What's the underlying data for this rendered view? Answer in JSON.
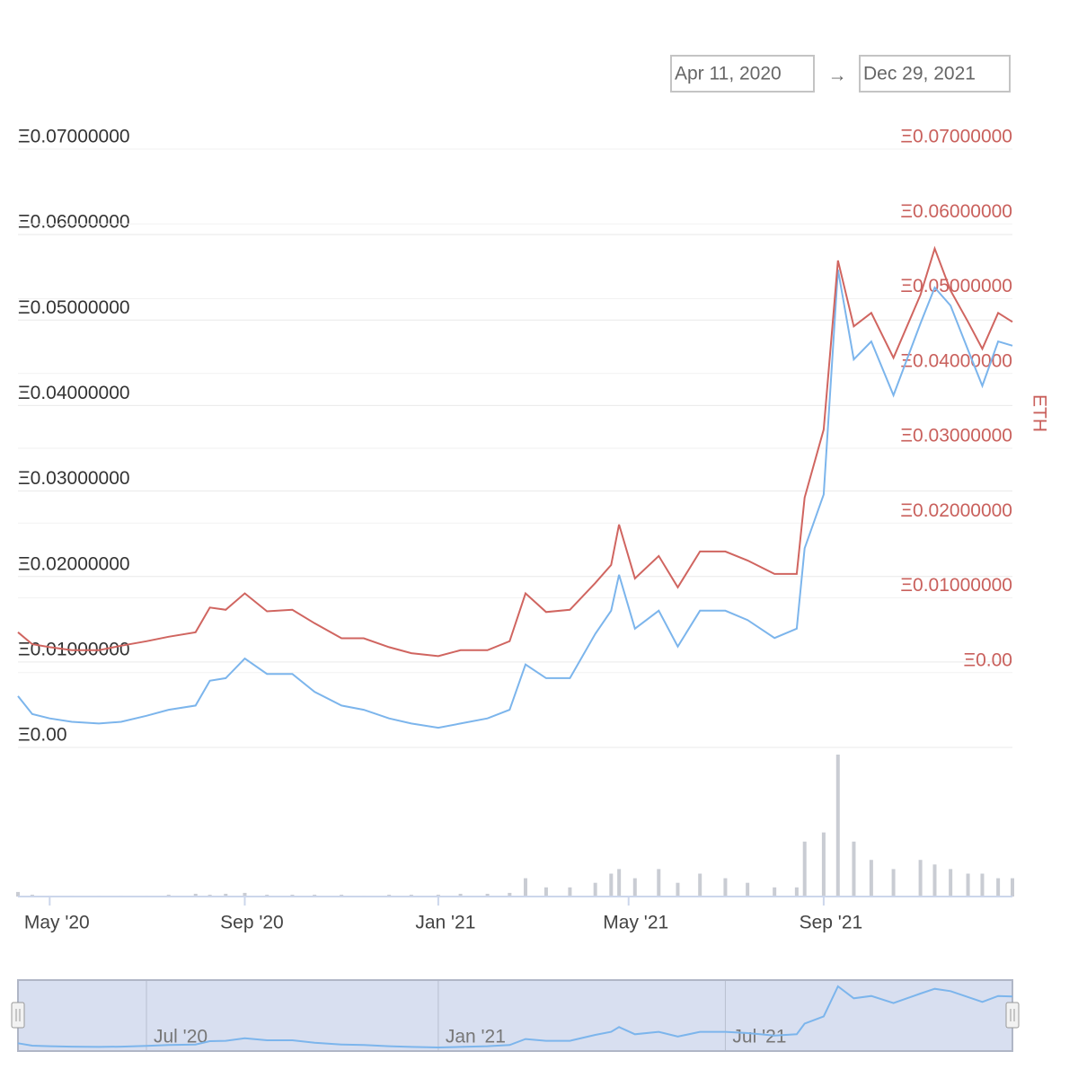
{
  "chart_data": {
    "type": "line",
    "range": {
      "from": "Apr 11, 2020",
      "separator": "→",
      "to": "Dec 29, 2021"
    },
    "x": [
      "2020-04-11",
      "2020-04-20",
      "2020-05-01",
      "2020-05-15",
      "2020-06-01",
      "2020-06-15",
      "2020-07-01",
      "2020-07-15",
      "2020-08-01",
      "2020-08-10",
      "2020-08-20",
      "2020-09-01",
      "2020-09-15",
      "2020-10-01",
      "2020-10-15",
      "2020-11-01",
      "2020-11-15",
      "2020-12-01",
      "2020-12-15",
      "2021-01-01",
      "2021-01-15",
      "2021-02-01",
      "2021-02-15",
      "2021-02-25",
      "2021-03-10",
      "2021-03-25",
      "2021-04-10",
      "2021-04-20",
      "2021-04-25",
      "2021-05-05",
      "2021-05-20",
      "2021-06-01",
      "2021-06-15",
      "2021-07-01",
      "2021-07-15",
      "2021-08-01",
      "2021-08-15",
      "2021-08-20",
      "2021-09-01",
      "2021-09-10",
      "2021-09-20",
      "2021-10-01",
      "2021-10-15",
      "2021-11-01",
      "2021-11-10",
      "2021-11-20",
      "2021-12-01",
      "2021-12-10",
      "2021-12-20",
      "2021-12-29"
    ],
    "xlim": [
      "2020-04-11",
      "2021-12-29"
    ],
    "xticks": [
      {
        "value": "2020-05-01",
        "label": "May '20"
      },
      {
        "value": "2020-09-01",
        "label": "Sep '20"
      },
      {
        "value": "2021-01-01",
        "label": "Jan '21"
      },
      {
        "value": "2021-05-01",
        "label": "May '21"
      },
      {
        "value": "2021-09-01",
        "label": "Sep '21"
      }
    ],
    "ylim": [
      0,
      0.07
    ],
    "yticks": [
      {
        "value": 0,
        "label": "Ξ0.00"
      },
      {
        "value": 0.01,
        "label": "Ξ0.01000000"
      },
      {
        "value": 0.02,
        "label": "Ξ0.02000000"
      },
      {
        "value": 0.03,
        "label": "Ξ0.03000000"
      },
      {
        "value": 0.04,
        "label": "Ξ0.04000000"
      },
      {
        "value": 0.05,
        "label": "Ξ0.05000000"
      },
      {
        "value": 0.06,
        "label": "Ξ0.06000000"
      },
      {
        "value": 0.07,
        "label": "Ξ0.07000000"
      }
    ],
    "y2lim": [
      -0.01,
      0.07
    ],
    "y2ticks": [
      {
        "value": 0,
        "label": "Ξ0.00"
      },
      {
        "value": 0.01,
        "label": "Ξ0.01000000"
      },
      {
        "value": 0.02,
        "label": "Ξ0.02000000"
      },
      {
        "value": 0.03,
        "label": "Ξ0.03000000"
      },
      {
        "value": 0.04,
        "label": "Ξ0.04000000"
      },
      {
        "value": 0.05,
        "label": "Ξ0.05000000"
      },
      {
        "value": 0.06,
        "label": "Ξ0.06000000"
      },
      {
        "value": 0.07,
        "label": "Ξ0.07000000"
      }
    ],
    "y2label": "ETH",
    "grid": true,
    "series": [
      {
        "color": "#7cb5ec",
        "values": [
          0.006,
          0.0039,
          0.0034,
          0.003,
          0.0028,
          0.003,
          0.0037,
          0.0044,
          0.0049,
          0.0078,
          0.0081,
          0.0104,
          0.0086,
          0.0086,
          0.0065,
          0.0049,
          0.0044,
          0.0034,
          0.0028,
          0.0023,
          0.0028,
          0.0034,
          0.0044,
          0.0097,
          0.0081,
          0.0081,
          0.0133,
          0.016,
          0.0202,
          0.0139,
          0.016,
          0.0118,
          0.016,
          0.016,
          0.0149,
          0.0128,
          0.0139,
          0.0233,
          0.0296,
          0.0559,
          0.0454,
          0.0475,
          0.0412,
          0.0496,
          0.0538,
          0.0517,
          0.0465,
          0.0423,
          0.0475,
          0.047
        ]
      },
      {
        "color": "#d06560",
        "axis": "y2",
        "values": [
          0.0054,
          0.0038,
          0.0034,
          0.003,
          0.003,
          0.0036,
          0.0042,
          0.0048,
          0.0054,
          0.0087,
          0.0084,
          0.0106,
          0.0082,
          0.0084,
          0.0066,
          0.0046,
          0.0046,
          0.0034,
          0.0026,
          0.0022,
          0.003,
          0.003,
          0.0042,
          0.0106,
          0.0081,
          0.0084,
          0.012,
          0.0144,
          0.0198,
          0.0126,
          0.0156,
          0.0114,
          0.0162,
          0.0162,
          0.015,
          0.0132,
          0.0132,
          0.0234,
          0.0325,
          0.0551,
          0.0463,
          0.0481,
          0.0421,
          0.0505,
          0.0567,
          0.0511,
          0.0469,
          0.0433,
          0.0481,
          0.0469
        ]
      }
    ],
    "volume": {
      "color": "#c9ccd3",
      "values": [
        5,
        2,
        1,
        1,
        1,
        1,
        1,
        2,
        3,
        2,
        3,
        4,
        2,
        2,
        2,
        2,
        1,
        2,
        2,
        2,
        3,
        3,
        4,
        20,
        10,
        10,
        15,
        25,
        30,
        20,
        30,
        15,
        25,
        20,
        15,
        10,
        10,
        60,
        70,
        155,
        60,
        40,
        30,
        40,
        35,
        30,
        25,
        25,
        20,
        20
      ]
    },
    "navigator": {
      "xticks": [
        {
          "value": "2020-07-01",
          "label": "Jul '20"
        },
        {
          "value": "2021-01-01",
          "label": "Jan '21"
        },
        {
          "value": "2021-07-01",
          "label": "Jul '21"
        }
      ]
    }
  }
}
